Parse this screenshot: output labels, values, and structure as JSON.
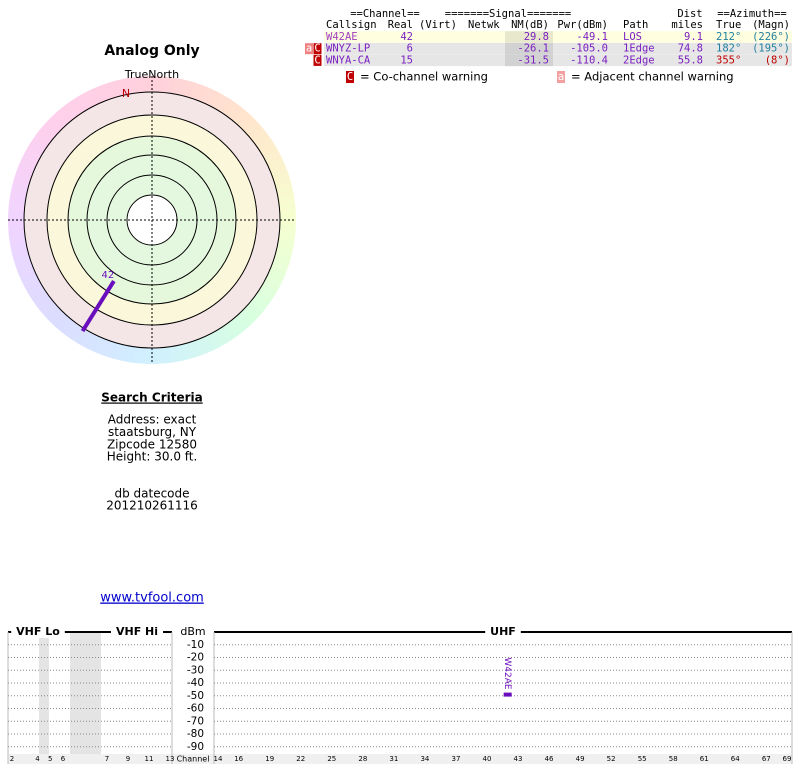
{
  "table": {
    "group_headers": {
      "channel": "==Channel==",
      "signal": "=======Signal=======",
      "dist": "Dist",
      "azimuth": "==Azimuth=="
    },
    "headers": [
      "Callsign",
      "Real",
      "(Virt)",
      "Netwk",
      "NM(dB)",
      "Pwr(dBm)",
      "Path",
      "miles",
      "True",
      "(Magn)"
    ],
    "rows": [
      {
        "callsign": "W42AE",
        "real": "42",
        "nm": "29.8",
        "pwr": "-49.1",
        "path": "LOS",
        "dist": "9.1",
        "true": "212°",
        "magn": "(226°)",
        "azimuth_color": "#1f7f9f"
      },
      {
        "callsign": "WNYZ-LP",
        "real": "6",
        "nm": "-26.1",
        "pwr": "-105.0",
        "path": "1Edge",
        "dist": "74.8",
        "true": "182°",
        "magn": "(195°)",
        "azimuth_color": "#1f7f9f",
        "warnings": [
          "a",
          "C"
        ]
      },
      {
        "callsign": "WNYA-CA",
        "real": "15",
        "nm": "-31.5",
        "pwr": "-110.4",
        "path": "2Edge",
        "dist": "55.8",
        "true": "355°",
        "magn": "(8°)",
        "azimuth_color": "#c00000",
        "warnings": [
          "C"
        ]
      }
    ]
  },
  "legend": {
    "co_channel": {
      "marker": "C",
      "label": "= Co-channel warning"
    },
    "adjacent": {
      "marker": "a",
      "label": "= Adjacent channel warning"
    }
  },
  "polar": {
    "title": "Analog Only",
    "north_label": "TrueNorth",
    "north_marker": "N",
    "stations": [
      {
        "label": "42",
        "bearing": 212
      }
    ]
  },
  "search": {
    "heading": "Search Criteria",
    "lines": [
      "Address: exact",
      "staatsburg, NY",
      "Zipcode 12580",
      "Height: 30.0 ft."
    ],
    "datecode_label": "db datecode",
    "datecode": "201210261116"
  },
  "link": "www.tvfool.com",
  "spectrum": {
    "unit": "dBm",
    "x_label": "Channel",
    "ylim": [
      -100,
      0
    ],
    "yticks": [
      -10,
      -20,
      -30,
      -40,
      -50,
      -60,
      -70,
      -80,
      -90
    ],
    "sections": [
      {
        "name": "VHF Lo",
        "xlim": [
          2,
          6
        ],
        "ticks": [
          2,
          4,
          5,
          6
        ]
      },
      {
        "name": "VHF Hi",
        "xlim": [
          7,
          13
        ],
        "ticks": [
          7,
          9,
          11,
          13
        ]
      },
      {
        "name": "UHF",
        "xlim": [
          14,
          69
        ],
        "ticks": [
          14,
          16,
          19,
          22,
          25,
          28,
          31,
          34,
          37,
          40,
          43,
          46,
          49,
          52,
          55,
          58,
          61,
          64,
          67,
          69
        ]
      }
    ],
    "markers": [
      {
        "label": "W42AE",
        "channel": 42,
        "value": -49.1
      }
    ]
  }
}
